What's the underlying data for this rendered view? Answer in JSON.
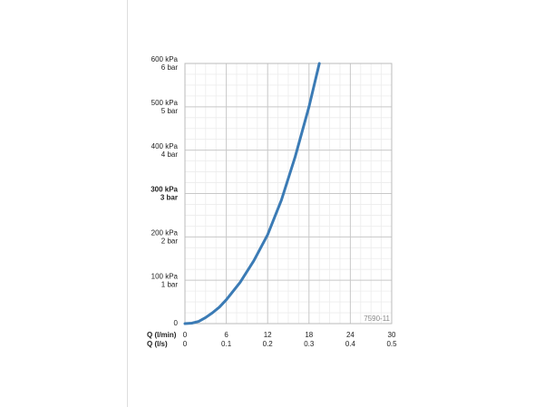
{
  "chart_data": {
    "type": "line",
    "x_axis_label": "Q (l/min)",
    "x2_axis_label": "Q (l/s)",
    "annotation": "7590-11",
    "x": [
      0,
      1,
      2,
      3,
      4,
      5,
      6,
      8,
      10,
      12,
      14,
      16,
      18,
      19.5
    ],
    "series": [
      {
        "color": "#3b7bb5",
        "values": [
          0,
          1,
          5,
          14,
          25,
          38,
          55,
          95,
          145,
          205,
          285,
          385,
          500,
          600
        ]
      }
    ],
    "xlim": [
      0,
      30
    ],
    "xticks": [
      0,
      6,
      12,
      18,
      24,
      30
    ],
    "x2lim": [
      0,
      0.5
    ],
    "x2ticks": [
      0,
      0.1,
      0.2,
      0.3,
      0.4,
      0.5
    ],
    "ylim": [
      0,
      600
    ],
    "yticks": [
      0,
      {
        "value": 100,
        "label": "100 kPa",
        "bar_label": "1 bar"
      },
      {
        "value": 200,
        "label": "200 kPa",
        "bar_label": "2 bar"
      },
      {
        "value": 300,
        "label": "300 kPa",
        "bar_label": "3 bar"
      },
      {
        "value": 400,
        "label": "400 kPa",
        "bar_label": "4 bar"
      },
      {
        "value": 500,
        "label": "500 kPa",
        "bar_label": "5 bar"
      },
      {
        "value": 600,
        "label": "600 kPa",
        "bar_label": "6 bar"
      }
    ],
    "bold_ytick": 300,
    "xminorticks": [
      1.5,
      3,
      4.5,
      7.5,
      9,
      10.5,
      13.5,
      15,
      16.5,
      19.5,
      21,
      22.5,
      25.5,
      27,
      28.5
    ],
    "yminorticks": [
      25,
      50,
      75,
      125,
      150,
      175,
      225,
      250,
      275,
      325,
      350,
      375,
      425,
      450,
      475,
      525,
      550,
      575
    ],
    "grid": true
  }
}
